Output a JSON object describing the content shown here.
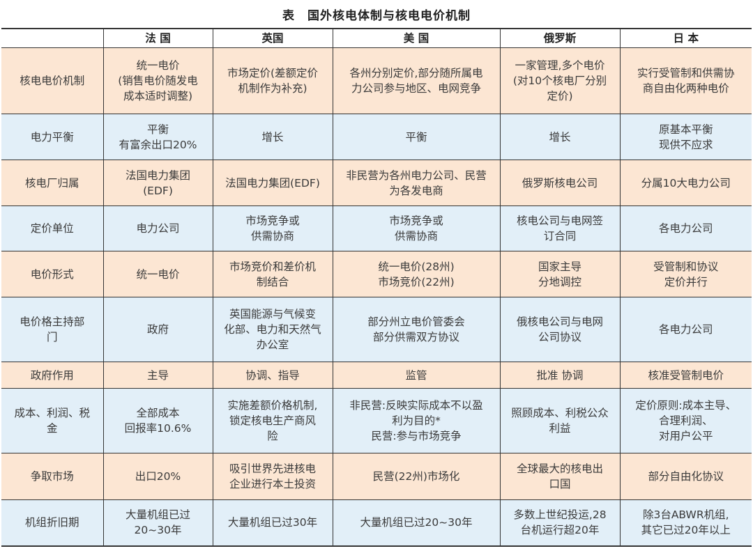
{
  "title": "表　国外核电体制与核电电价机制",
  "colors": {
    "row_a": "#fce6d3",
    "row_b": "#e2eff8",
    "border": "#333333"
  },
  "headers": [
    "",
    "法 国",
    "英国",
    "美 国",
    "俄罗斯",
    "日 本"
  ],
  "rows": [
    [
      "核电电价机制",
      "统一电价\n(销售电价随发电\n成本适时调整)",
      "市场定价(差额定价\n机制作为补充)",
      "各州分别定价,部分随所属电\n力公司参与地区、电网竞争",
      "一家管理,多个电价\n(对10个核电厂分别\n定价)",
      "实行受管制和供需协\n商自由化两种电价"
    ],
    [
      "电力平衡",
      "平衡\n有富余出口20%",
      "增长",
      "平衡",
      "增长",
      "原基本平衡\n现供不应求"
    ],
    [
      "核电厂归属",
      "法国电力集团\n(EDF)",
      "法国电力集团(EDF)",
      "非民营为各州电力公司、民营\n为各发电商",
      "俄罗斯核电公司",
      "分属10大电力公司"
    ],
    [
      "定价单位",
      "电力公司",
      "市场竞争或\n供需协商",
      "市场竞争或\n供需协商",
      "核电公司与电网签\n订合同",
      "各电力公司"
    ],
    [
      "电价形式",
      "统一电价",
      "市场竞价和差价机\n制结合",
      "统一电价(28州)\n市场竞价(22州)",
      "国家主导\n分地调控",
      "受管制和协议\n定价并行"
    ],
    [
      "电价格主持部\n门",
      "政府",
      "英国能源与气候变\n化部、电力和天然气\n办公室",
      "部分州立电价管委会\n部分供需双方协议",
      "俄核电公司与电网\n公司协议",
      "各电力公司"
    ],
    [
      "政府作用",
      "主导",
      "协调、指导",
      "监管",
      "批准 协调",
      "核准受管制电价"
    ],
    [
      "成本、利润、税\n金",
      "全部成本\n回报率10.6%",
      "实施差额价格机制,\n锁定核电生产商风\n险",
      "非民营:反映实际成本不以盈\n利为目的*\n民营:参与市场竞争",
      "照顾成本、利税公众\n利益",
      "定价原则:成本主导、\n合理利润、\n对用户公平"
    ],
    [
      "争取市场",
      "出口20%",
      "吸引世界先进核电\n企业进行本土投资",
      "民营(22州)市场化",
      "全球最大的核电出\n口国",
      "部分自由化协议"
    ],
    [
      "机组折旧期",
      "大量机组已过\n20~30年",
      "大量机组已过30年",
      "大量机组已过20~30年",
      "多数上世纪投运,28\n台机运行超20年",
      "除3台ABWR机组,\n其它已过20年以上"
    ]
  ]
}
